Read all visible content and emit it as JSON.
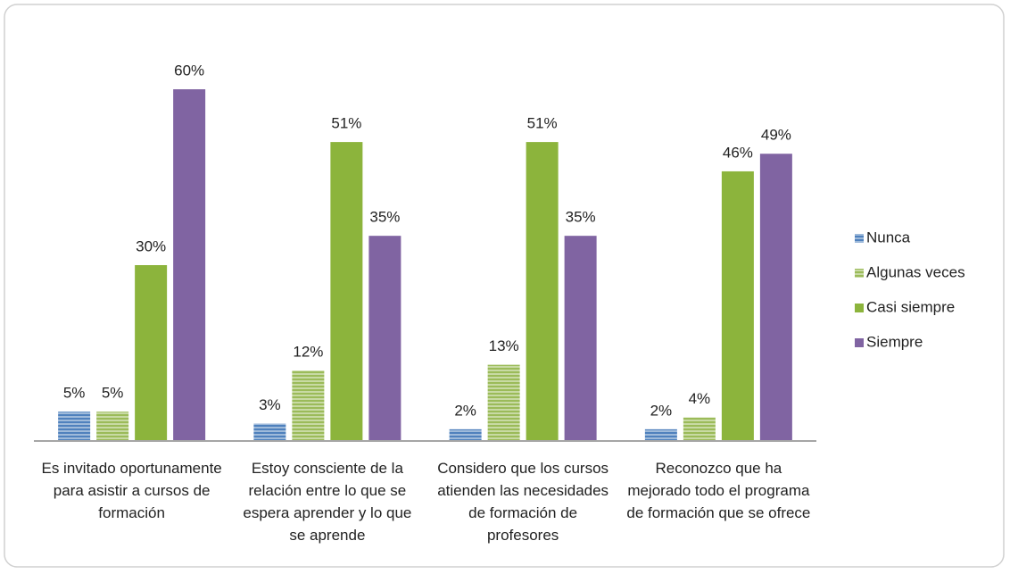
{
  "chart_data": {
    "type": "bar",
    "categories": [
      "Es invitado oportunamente para asistir a cursos de formación",
      "Estoy consciente de la relación entre lo que se espera aprender y lo que se aprende",
      "Considero que los cursos atienden las necesidades de formación de profesores",
      "Reconozco que ha mejorado todo el programa de formación que se ofrece"
    ],
    "series": [
      {
        "name": "Nunca",
        "color": "#4f81bd",
        "hatch": "horizontal",
        "values": [
          5,
          3,
          2,
          2
        ],
        "value_labels": [
          "5%",
          "3%",
          "2%",
          "2%"
        ]
      },
      {
        "name": "Algunas veces",
        "color": "#9bbb59",
        "hatch": "horizontal",
        "values": [
          5,
          12,
          13,
          4
        ],
        "value_labels": [
          "5%",
          "12%",
          "13%",
          "4%"
        ]
      },
      {
        "name": "Casi siempre",
        "color": "#8cb43c",
        "values": [
          30,
          51,
          51,
          46
        ],
        "value_labels": [
          "30%",
          "51%",
          "51%",
          "46%"
        ]
      },
      {
        "name": "Siempre",
        "color": "#8064a2",
        "values": [
          60,
          35,
          35,
          49
        ],
        "value_labels": [
          "60%",
          "35%",
          "35%",
          "49%"
        ]
      }
    ],
    "legend": "right"
  }
}
